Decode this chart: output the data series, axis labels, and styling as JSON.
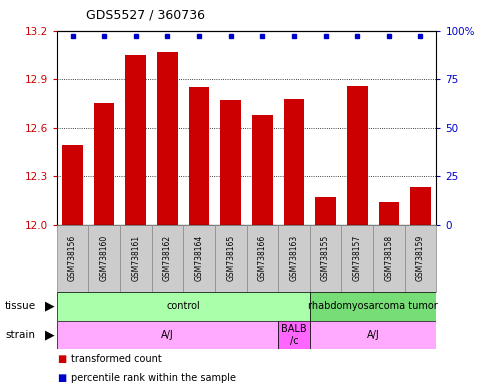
{
  "title": "GDS5527 / 360736",
  "samples": [
    "GSM738156",
    "GSM738160",
    "GSM738161",
    "GSM738162",
    "GSM738164",
    "GSM738165",
    "GSM738166",
    "GSM738163",
    "GSM738155",
    "GSM738157",
    "GSM738158",
    "GSM738159"
  ],
  "bar_values": [
    12.49,
    12.75,
    13.05,
    13.07,
    12.85,
    12.77,
    12.68,
    12.78,
    12.17,
    12.86,
    12.14,
    12.23
  ],
  "percentile_values": [
    100,
    100,
    100,
    100,
    100,
    100,
    100,
    100,
    100,
    100,
    100,
    100
  ],
  "bar_color": "#cc0000",
  "percentile_color": "#0000cc",
  "ylim_left": [
    12.0,
    13.2
  ],
  "ylim_right": [
    0,
    100
  ],
  "yticks_left": [
    12.0,
    12.3,
    12.6,
    12.9,
    13.2
  ],
  "yticks_right": [
    0,
    25,
    50,
    75,
    100
  ],
  "tissue_labels": [
    {
      "text": "control",
      "start": 0,
      "end": 7,
      "color": "#aaffaa"
    },
    {
      "text": "rhabdomyosarcoma tumor",
      "start": 8,
      "end": 11,
      "color": "#77dd77"
    }
  ],
  "strain_labels": [
    {
      "text": "A/J",
      "start": 0,
      "end": 6,
      "color": "#ffaaff"
    },
    {
      "text": "BALB\n/c",
      "start": 7,
      "end": 7,
      "color": "#ff66ff"
    },
    {
      "text": "A/J",
      "start": 8,
      "end": 11,
      "color": "#ffaaff"
    }
  ],
  "legend_entries": [
    {
      "label": "transformed count",
      "color": "#cc0000"
    },
    {
      "label": "percentile rank within the sample",
      "color": "#0000cc"
    }
  ],
  "left_tick_color": "#cc0000",
  "right_tick_color": "#0000cc",
  "background_color": "#ffffff",
  "grid_color": "#000000",
  "sample_box_color": "#cccccc",
  "sample_box_edge": "#888888"
}
